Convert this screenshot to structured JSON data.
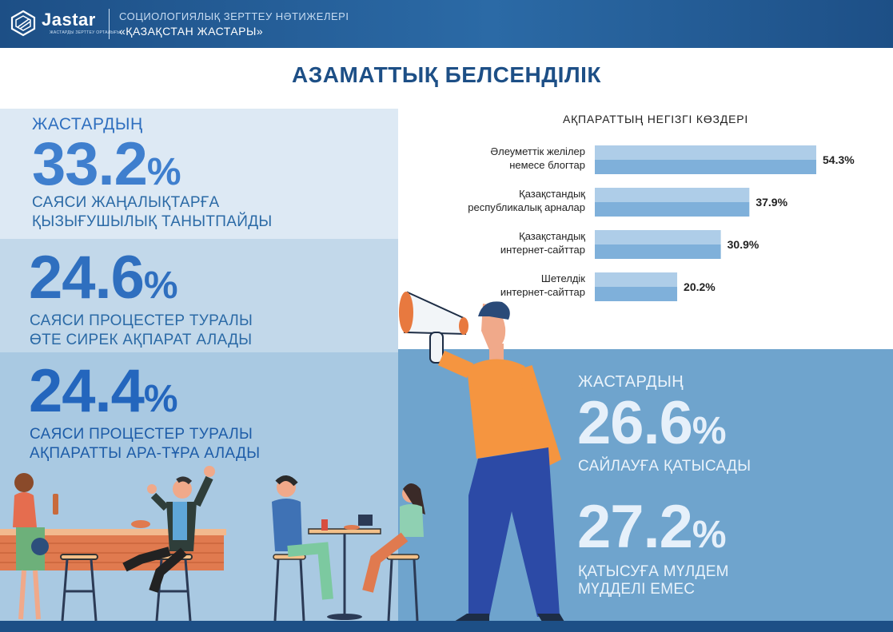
{
  "header": {
    "logo_text": "Jastar",
    "logo_subtext": "ЖАСТАРДЫ ЗЕРТТЕУ ОРТАЛЫҒЫ",
    "line1": "СОЦИОЛОГИЯЛЫҚ ЗЕРТТЕУ НӘТИЖЕЛЕРІ",
    "line2": "«ҚАЗАҚСТАН ЖАСТАРЫ»"
  },
  "title": "АЗАМАТТЫҚ БЕЛСЕНДІЛІК",
  "left_stats": [
    {
      "prefix": "ЖАСТАРДЫҢ",
      "number": "33.2",
      "percent_sign": "%",
      "lines": [
        "САЯСИ ЖАҢАЛЫҚТАРҒА",
        "ҚЫЗЫҒУШЫЛЫҚ ТАНЫТПАЙДЫ"
      ]
    },
    {
      "number": "24.6",
      "percent_sign": "%",
      "lines": [
        "САЯСИ ПРОЦЕСТЕР ТУРАЛЫ",
        "ӨТЕ СИРЕК АҚПАРАТ АЛАДЫ"
      ]
    },
    {
      "number": "24.4",
      "percent_sign": "%",
      "lines": [
        "САЯСИ ПРОЦЕСТЕР ТУРАЛЫ",
        "АҚПАРАТТЫ АРА-ТҰРА АЛАДЫ"
      ]
    }
  ],
  "right_stats": [
    {
      "prefix": "ЖАСТАРДЫҢ",
      "number": "26.6",
      "percent_sign": "%",
      "lines": [
        "САЙЛАУҒА ҚАТЫСАДЫ"
      ]
    },
    {
      "number": "27.2",
      "percent_sign": "%",
      "lines": [
        "ҚАТЫСУҒА МҮЛДЕМ",
        "МҮДДЕЛІ ЕМЕС"
      ]
    }
  ],
  "chart_data": {
    "type": "bar",
    "orientation": "horizontal",
    "title": "АҚПАРАТТЫҢ НЕГІЗГІ КӨЗДЕРІ",
    "categories": [
      [
        "Әлеуметтік желілер",
        "немесе блогтар"
      ],
      [
        "Қазақстандық",
        "республикалық арналар"
      ],
      [
        "Қазақстандық",
        "интернет-сайттар"
      ],
      [
        "Шетелдік",
        "интернет-сайттар"
      ]
    ],
    "values": [
      54.3,
      37.9,
      30.9,
      20.2
    ],
    "value_labels": [
      "54.3%",
      "37.9%",
      "30.9%",
      "20.2%"
    ],
    "xlim": [
      0,
      54.3
    ],
    "colors": {
      "bar_light": "#aecde8",
      "bar_dark": "#7fb0da"
    }
  },
  "colors": {
    "primary": "#1d4f86",
    "accent_blue": "#3f7fce",
    "band_light": "#dde9f4",
    "band_mid": "#c2d8ea",
    "band_dark": "#a9c9e2",
    "panel_right": "#6fa4cd"
  }
}
